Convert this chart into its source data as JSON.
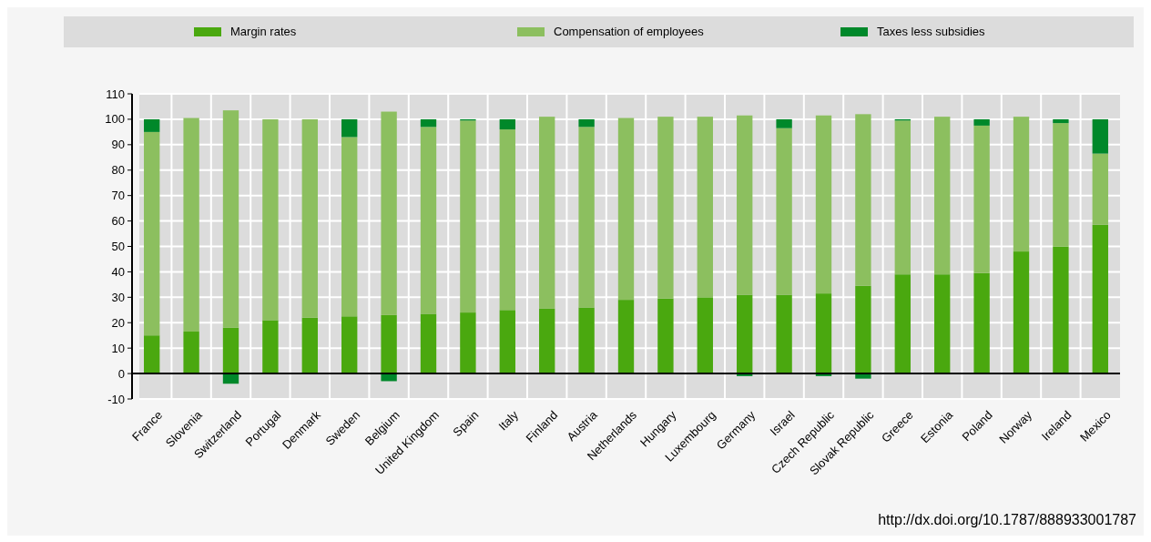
{
  "chart_data": {
    "type": "bar",
    "stacked": true,
    "categories": [
      "France",
      "Slovenia",
      "Switzerland",
      "Portugal",
      "Denmark",
      "Sweden",
      "Belgium",
      "United Kingdom",
      "Spain",
      "Italy",
      "Finland",
      "Austria",
      "Netherlands",
      "Hungary",
      "Luxembourg",
      "Germany",
      "Israel",
      "Czech Republic",
      "Slovak Republic",
      "Greece",
      "Estonia",
      "Poland",
      "Norway",
      "Ireland",
      "Mexico"
    ],
    "series": [
      {
        "name": "Margin rates",
        "color": "#4aa80f",
        "values": [
          15,
          16.5,
          18,
          21,
          22,
          22.5,
          23,
          23.5,
          24,
          25,
          25.5,
          26,
          29,
          29.5,
          30,
          31,
          31,
          31.5,
          34.5,
          39,
          39,
          39.5,
          48,
          50,
          58.5
        ]
      },
      {
        "name": "Compensation of employees",
        "color": "#8cbf5f",
        "values": [
          80,
          84,
          85.5,
          79,
          78,
          70.5,
          80,
          73.5,
          75.5,
          71,
          75.5,
          71,
          71.5,
          71.5,
          71,
          70.5,
          65.5,
          70,
          67.5,
          60.5,
          62,
          58,
          53,
          48.5,
          28
        ]
      },
      {
        "name": "Taxes less subsidies",
        "color": "#00882a",
        "values": [
          5,
          0,
          -4,
          0,
          0,
          7,
          -3,
          3,
          0.5,
          4,
          null,
          3,
          0,
          0,
          null,
          -1,
          3.5,
          -1,
          -2,
          0.5,
          0,
          2.5,
          0,
          1.5,
          13.5
        ]
      }
    ],
    "ylim": [
      -10,
      110
    ],
    "yticks": [
      -10,
      0,
      10,
      20,
      30,
      40,
      50,
      60,
      70,
      80,
      90,
      100,
      110
    ],
    "grid": true,
    "legend": "top",
    "annotations": [
      "http://dx.doi.org/10.1787/888933001787"
    ]
  }
}
